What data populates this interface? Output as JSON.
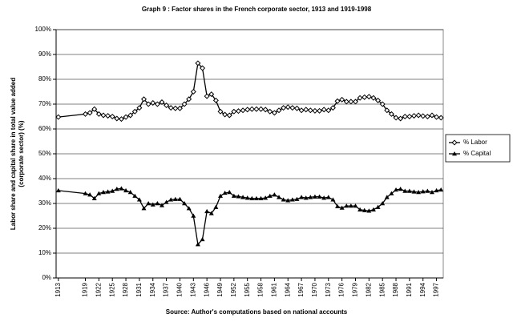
{
  "chart_data": {
    "type": "line",
    "title": "Graph 9 : Factor shares in the French corporate sector, 1913 and 1919-1998",
    "ylabel": [
      "Labor share and capital share in total value added",
      "(corporate sector) (%)"
    ],
    "source": "Source: Author's computations based on national accounts",
    "x": [
      1913,
      1919,
      1920,
      1921,
      1922,
      1923,
      1924,
      1925,
      1926,
      1927,
      1928,
      1929,
      1930,
      1931,
      1932,
      1933,
      1934,
      1935,
      1936,
      1937,
      1938,
      1939,
      1940,
      1941,
      1942,
      1943,
      1944,
      1945,
      1946,
      1947,
      1948,
      1949,
      1950,
      1951,
      1952,
      1953,
      1954,
      1955,
      1956,
      1957,
      1958,
      1959,
      1960,
      1961,
      1962,
      1963,
      1964,
      1965,
      1966,
      1967,
      1968,
      1969,
      1970,
      1971,
      1972,
      1973,
      1974,
      1975,
      1976,
      1977,
      1978,
      1979,
      1980,
      1981,
      1982,
      1983,
      1984,
      1985,
      1986,
      1987,
      1988,
      1989,
      1990,
      1991,
      1992,
      1993,
      1994,
      1995,
      1996,
      1997,
      1998
    ],
    "series": [
      {
        "name": "% Labor",
        "color": "#000000",
        "marker": "diamond",
        "values": [
          64.8,
          66,
          66.5,
          68,
          66,
          65.5,
          65.3,
          65,
          64.2,
          64,
          64.8,
          65.5,
          67,
          68.5,
          72,
          70,
          70.5,
          70,
          70.8,
          69.5,
          68.5,
          68.3,
          68.3,
          70,
          72,
          75,
          86.5,
          84.5,
          73.2,
          74,
          71.5,
          67,
          65.8,
          65.5,
          67,
          67.2,
          67.5,
          67.8,
          68,
          68,
          68,
          67.8,
          67,
          66.5,
          67.5,
          68.5,
          68.8,
          68.5,
          68.3,
          67.5,
          67.8,
          67.5,
          67.3,
          67.3,
          67.8,
          67.5,
          68.5,
          71.2,
          71.8,
          71,
          71,
          71,
          72.5,
          72.8,
          73,
          72.5,
          71.5,
          70,
          67.5,
          66,
          64.5,
          64.2,
          65,
          65,
          65.3,
          65.5,
          65.2,
          65,
          65.5,
          64.8,
          64.5
        ]
      },
      {
        "name": "% Capital",
        "color": "#000000",
        "marker": "triangle",
        "values": [
          35.2,
          34,
          33.5,
          32,
          34,
          34.5,
          34.7,
          35,
          35.8,
          36,
          35.2,
          34.5,
          33,
          31.5,
          28,
          30,
          29.5,
          30,
          29.2,
          30.5,
          31.5,
          31.7,
          31.7,
          30,
          28,
          25,
          13.5,
          15.5,
          26.8,
          26,
          28.5,
          33,
          34.2,
          34.5,
          33,
          32.8,
          32.5,
          32.2,
          32,
          32,
          32,
          32.2,
          33,
          33.5,
          32.5,
          31.5,
          31.2,
          31.5,
          31.7,
          32.5,
          32.2,
          32.5,
          32.7,
          32.7,
          32.2,
          32.5,
          31.5,
          28.8,
          28.2,
          29,
          29,
          29,
          27.5,
          27.2,
          27,
          27.5,
          28.5,
          30,
          32.5,
          34,
          35.5,
          35.8,
          35,
          35,
          34.7,
          34.5,
          34.8,
          35,
          34.5,
          35.2,
          35.5
        ]
      }
    ],
    "xlim": [
      1912.5,
      1998.5
    ],
    "xticks": [
      1913,
      1919,
      1922,
      1925,
      1928,
      1931,
      1934,
      1937,
      1940,
      1943,
      1946,
      1949,
      1952,
      1955,
      1958,
      1961,
      1964,
      1967,
      1970,
      1973,
      1976,
      1979,
      1982,
      1985,
      1988,
      1991,
      1994,
      1997
    ],
    "ylim": [
      0,
      100
    ],
    "yticks": [
      {
        "value": 0,
        "label": "0%"
      },
      {
        "value": 10,
        "label": "10%"
      },
      {
        "value": 20,
        "label": "20%"
      },
      {
        "value": 30,
        "label": "30%"
      },
      {
        "value": 40,
        "label": "40%"
      },
      {
        "value": 50,
        "label": "50%"
      },
      {
        "value": 60,
        "label": "60%"
      },
      {
        "value": 70,
        "label": "70%"
      },
      {
        "value": 80,
        "label": "80%"
      },
      {
        "value": 90,
        "label": "90%"
      },
      {
        "value": 100,
        "label": "100%"
      }
    ],
    "grid": true,
    "legend": "right"
  }
}
